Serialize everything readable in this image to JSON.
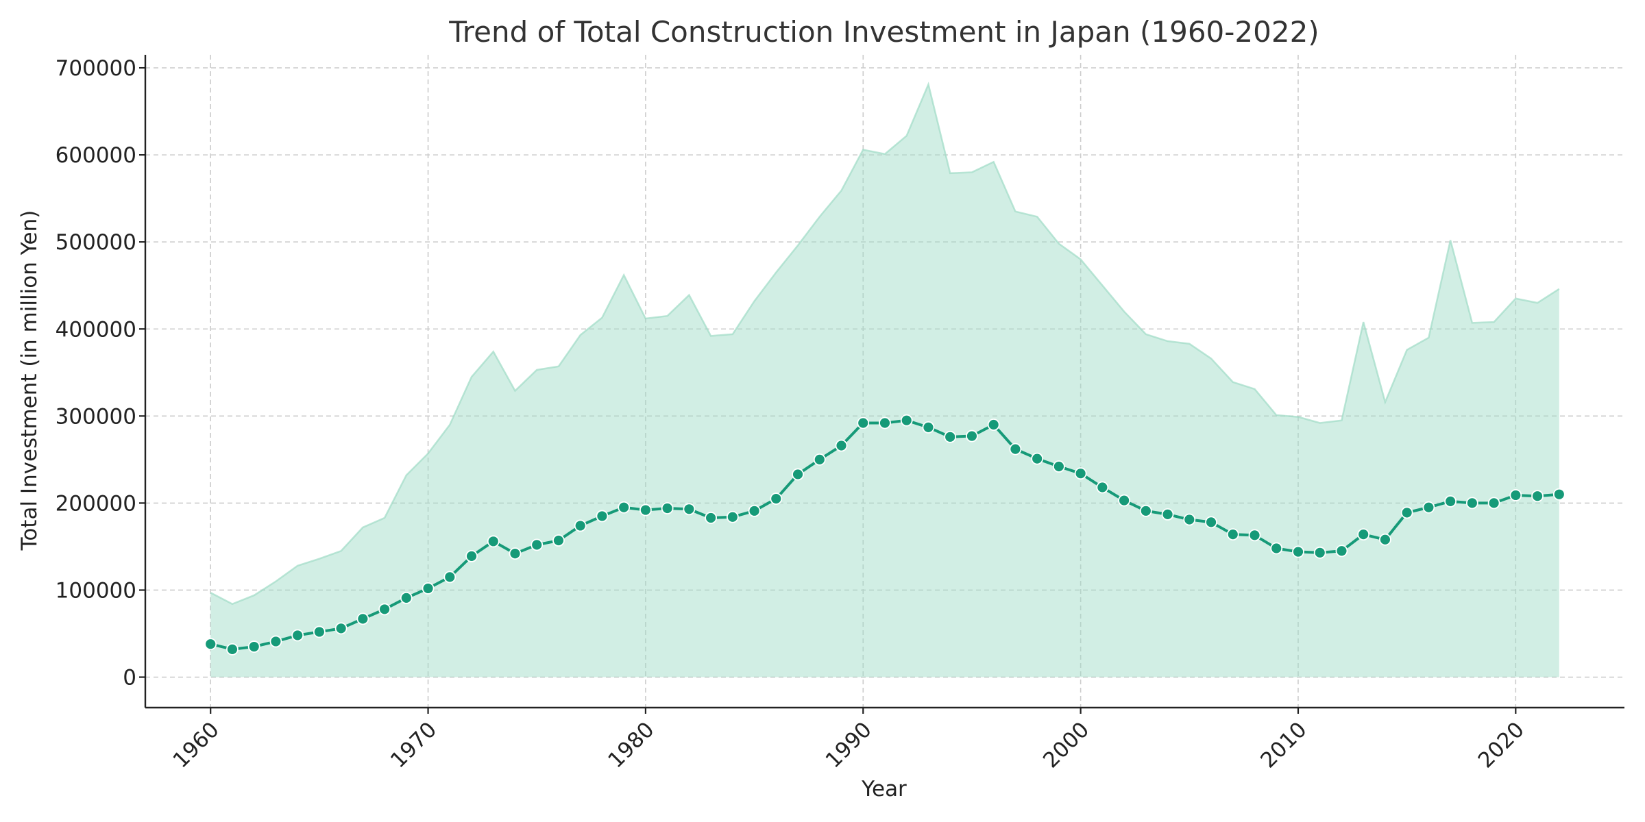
{
  "chart_data": {
    "type": "line",
    "title": "Trend of Total Construction Investment in Japan (1960-2022)",
    "xlabel": "Year",
    "ylabel": "Total Investment (in million Yen)",
    "xlim": [
      1957,
      2025
    ],
    "ylim": [
      -35000,
      715000
    ],
    "x_ticks": [
      1960,
      1970,
      1980,
      1990,
      2000,
      2010,
      2020
    ],
    "y_ticks": [
      0,
      100000,
      200000,
      300000,
      400000,
      500000,
      600000,
      700000
    ],
    "grid": true,
    "x": [
      1960,
      1961,
      1962,
      1963,
      1964,
      1965,
      1966,
      1967,
      1968,
      1969,
      1970,
      1971,
      1972,
      1973,
      1974,
      1975,
      1976,
      1977,
      1978,
      1979,
      1980,
      1981,
      1982,
      1983,
      1984,
      1985,
      1986,
      1987,
      1988,
      1989,
      1990,
      1991,
      1992,
      1993,
      1994,
      1995,
      1996,
      1997,
      1998,
      1999,
      2000,
      2001,
      2002,
      2003,
      2004,
      2005,
      2006,
      2007,
      2008,
      2009,
      2010,
      2011,
      2012,
      2013,
      2014,
      2015,
      2016,
      2017,
      2018,
      2019,
      2020,
      2021,
      2022
    ],
    "series": [
      {
        "kind": "area",
        "color": "#9fdcc6",
        "values": [
          97000,
          84000,
          94000,
          110000,
          128000,
          136000,
          145000,
          172000,
          183000,
          232000,
          257000,
          290000,
          345000,
          374000,
          329000,
          353000,
          357000,
          393000,
          413000,
          462000,
          412000,
          415000,
          439000,
          392000,
          394000,
          432000,
          465000,
          496000,
          529000,
          559000,
          606000,
          601000,
          622000,
          681000,
          579000,
          580000,
          592000,
          535000,
          529000,
          498000,
          480000,
          450000,
          420000,
          394000,
          386000,
          383000,
          366000,
          339000,
          331000,
          301000,
          299000,
          292000,
          295000,
          408000,
          316000,
          376000,
          390000,
          502000,
          407000,
          408000,
          435000,
          430000,
          446000
        ]
      },
      {
        "kind": "line",
        "color": "#169a78",
        "values": [
          38000,
          32000,
          35000,
          41000,
          48000,
          52000,
          56000,
          67000,
          78000,
          91000,
          102000,
          115000,
          139000,
          156000,
          142000,
          152000,
          157000,
          174000,
          185000,
          195000,
          192000,
          194000,
          193000,
          183000,
          184000,
          191000,
          205000,
          233000,
          250000,
          266000,
          292000,
          292000,
          295000,
          287000,
          276000,
          277000,
          290000,
          262000,
          251000,
          242000,
          234000,
          218000,
          203000,
          191000,
          187000,
          181000,
          178000,
          164000,
          163000,
          148000,
          144000,
          143000,
          145000,
          164000,
          158000,
          189000,
          195000,
          202000,
          200000,
          200000,
          209000,
          208000,
          210000
        ]
      }
    ]
  }
}
